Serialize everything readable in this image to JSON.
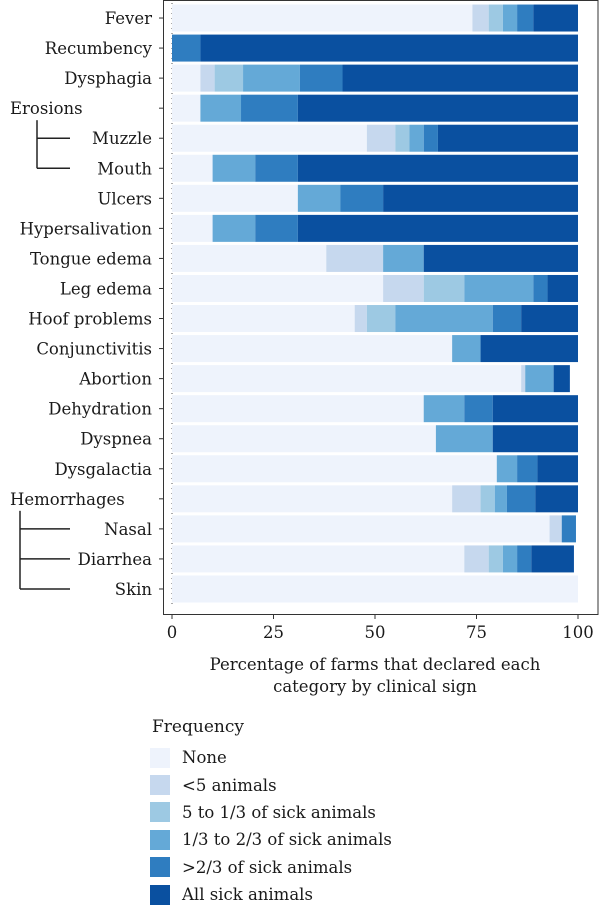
{
  "chart_data": {
    "type": "bar",
    "orientation": "horizontal",
    "stacked": true,
    "categories": [
      "Fever",
      "Recumbency",
      "Dysphagia",
      "Erosions",
      "Muzzle",
      "Mouth",
      "Ulcers",
      "Hypersalivation",
      "Tongue edema",
      "Leg edema",
      "Hoof problems",
      "Conjunctivitis",
      "Abortion",
      "Dehydration",
      "Dyspnea",
      "Dysgalactia",
      "Hemorrhages",
      "Nasal",
      "Diarrhea",
      "Skin"
    ],
    "series": [
      {
        "name": "None",
        "color": "#eef3fc",
        "values": [
          74,
          0,
          7,
          7,
          48,
          10,
          31,
          10,
          38,
          52,
          45,
          69,
          86,
          62,
          65,
          80,
          69,
          93,
          72,
          100
        ]
      },
      {
        "name": "<5 animals",
        "color": "#c6d8ee",
        "values": [
          4,
          0,
          3.5,
          0,
          7,
          0,
          0,
          0,
          14,
          10,
          3,
          0,
          1,
          0,
          0,
          0,
          7,
          3,
          6,
          0
        ]
      },
      {
        "name": "5 to 1/3 of sick animals",
        "color": "#9dc9e3",
        "values": [
          3.5,
          0,
          7,
          0,
          3.5,
          0,
          0,
          0,
          0,
          10,
          7,
          0,
          0,
          0,
          0,
          0,
          3.5,
          0,
          3.5,
          0
        ]
      },
      {
        "name": "1/3 to 2/3 of sick animals",
        "color": "#64a9d7",
        "values": [
          3.5,
          0,
          14,
          10,
          3.5,
          10.5,
          10.5,
          10.5,
          10,
          17,
          24,
          7,
          7,
          10,
          14,
          5,
          3,
          0,
          3.5,
          0
        ]
      },
      {
        "name": ">2/3 of sick animals",
        "color": "#2f7dc0",
        "values": [
          4,
          7,
          10.5,
          14,
          3.5,
          10.5,
          10.5,
          10.5,
          0,
          3.5,
          7,
          0,
          0,
          7,
          0,
          5,
          7,
          3.5,
          3.5,
          0
        ]
      },
      {
        "name": "All sick animals",
        "color": "#0a50a0",
        "values": [
          11,
          93,
          58,
          69,
          34.5,
          69,
          48,
          69,
          38,
          7.5,
          14,
          24,
          4,
          21,
          21,
          10,
          10.5,
          0,
          10.5,
          0
        ]
      }
    ],
    "xlim": [
      0,
      100
    ],
    "xticks": [
      "0",
      "25",
      "50",
      "75",
      "100"
    ],
    "xlabel_lines": [
      "Percentage of farms that declared each",
      "category by clinical sign"
    ],
    "brackets": [
      {
        "parent": "Erosions",
        "children": [
          "Muzzle",
          "Mouth"
        ]
      },
      {
        "parent": "Hemorrhages",
        "children": [
          "Nasal",
          "Diarrhea",
          "Skin"
        ]
      }
    ],
    "legend": {
      "title": "Frequency",
      "position": "bottom"
    },
    "grid": false
  }
}
